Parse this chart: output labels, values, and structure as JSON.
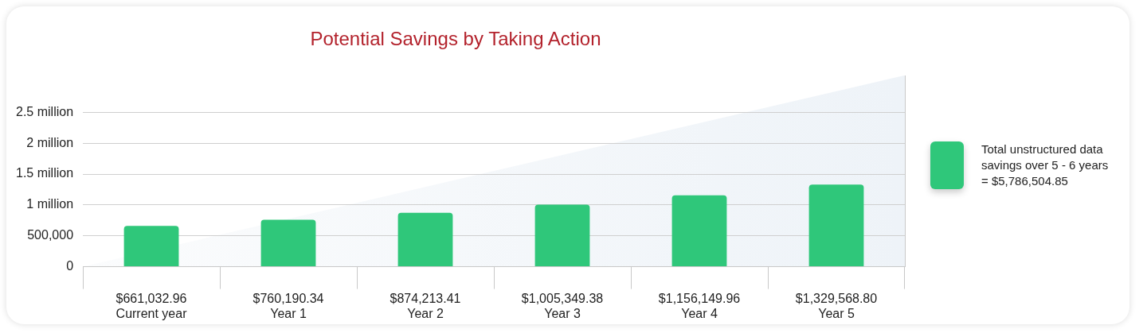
{
  "chart_data": {
    "type": "bar",
    "title": "Potential Savings by Taking Action",
    "categories": [
      "Current year",
      "Year 1",
      "Year 2",
      "Year 3",
      "Year 4",
      "Year 5"
    ],
    "series": [
      {
        "name": "Total unstructured data savings over 5 - 6 years = $5,786,504.85",
        "color": "#2fc77a",
        "values": [
          661032.96,
          760190.34,
          874213.41,
          1005349.38,
          1156149.96,
          1329568.8
        ]
      }
    ],
    "value_labels": [
      "$661,032.96",
      "$760,190.34",
      "$874,213.41",
      "$1,005,349.38",
      "$1,156,149.96",
      "$1,329,568.80"
    ],
    "ylim": [
      0,
      3100000
    ],
    "yticks": [
      0,
      {
        "value": 500000,
        "label": "500,000"
      },
      {
        "value": 1000000,
        "label": "1 million"
      },
      {
        "value": 1500000,
        "label": "1.5 million"
      },
      {
        "value": 2000000,
        "label": "2 million"
      },
      {
        "value": 2500000,
        "label": "2.5 million"
      }
    ],
    "grid": "y",
    "legend": "right"
  }
}
